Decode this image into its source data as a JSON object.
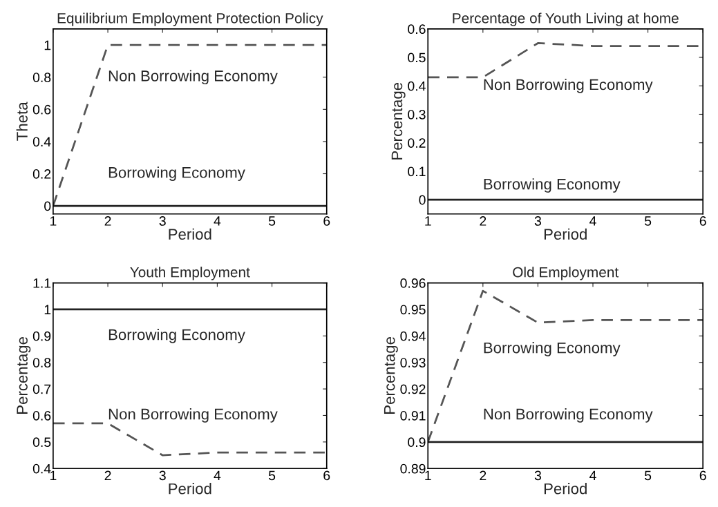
{
  "chart_data": [
    {
      "type": "line",
      "title": "Equilibrium Employment Protection Policy",
      "xlabel": "Period",
      "ylabel": "Theta",
      "x": [
        1,
        2,
        3,
        4,
        5,
        6
      ],
      "xlim": [
        1,
        6
      ],
      "xticks": [
        1,
        2,
        3,
        4,
        5,
        6
      ],
      "ylim": [
        -0.05,
        1.1
      ],
      "yticks": [
        0,
        0.2,
        0.4,
        0.6,
        0.8,
        1
      ],
      "grid": false,
      "legend": false,
      "series": [
        {
          "name": "Non Borrowing Economy",
          "color": "#555555",
          "line_style": "dashed",
          "values": [
            0,
            1,
            1,
            1,
            1,
            1
          ]
        },
        {
          "name": "Borrowing Economy",
          "color": "#222222",
          "line_style": "solid",
          "values": [
            0,
            0,
            0,
            0,
            0,
            0
          ]
        }
      ]
    },
    {
      "type": "line",
      "title": "Percentage of Youth Living at home",
      "xlabel": "Period",
      "ylabel": "Percentage",
      "x": [
        1,
        2,
        3,
        4,
        5,
        6
      ],
      "xlim": [
        1,
        6
      ],
      "xticks": [
        1,
        2,
        3,
        4,
        5,
        6
      ],
      "ylim": [
        -0.05,
        0.6
      ],
      "yticks": [
        0,
        0.1,
        0.2,
        0.3,
        0.4,
        0.5,
        0.6
      ],
      "grid": false,
      "legend": false,
      "series": [
        {
          "name": "Non Borrowing Economy",
          "color": "#555555",
          "line_style": "dashed",
          "values": [
            0.43,
            0.43,
            0.55,
            0.54,
            0.54,
            0.54
          ]
        },
        {
          "name": "Borrowing Economy",
          "color": "#222222",
          "line_style": "solid",
          "values": [
            0,
            0,
            0,
            0,
            0,
            0
          ]
        }
      ]
    },
    {
      "type": "line",
      "title": "Youth Employment",
      "xlabel": "Period",
      "ylabel": "Percentage",
      "x": [
        1,
        2,
        3,
        4,
        5,
        6
      ],
      "xlim": [
        1,
        6
      ],
      "xticks": [
        1,
        2,
        3,
        4,
        5,
        6
      ],
      "ylim": [
        0.4,
        1.1
      ],
      "yticks": [
        0.4,
        0.5,
        0.6,
        0.7,
        0.8,
        0.9,
        1,
        1.1
      ],
      "grid": false,
      "legend": false,
      "series": [
        {
          "name": "Non Borrowing Economy",
          "color": "#555555",
          "line_style": "dashed",
          "values": [
            0.57,
            0.57,
            0.45,
            0.46,
            0.46,
            0.46
          ]
        },
        {
          "name": "Borrowing Economy",
          "color": "#222222",
          "line_style": "solid",
          "values": [
            1,
            1,
            1,
            1,
            1,
            1
          ]
        }
      ]
    },
    {
      "type": "line",
      "title": "Old Employment",
      "xlabel": "Period",
      "ylabel": "Percentage",
      "x": [
        1,
        2,
        3,
        4,
        5,
        6
      ],
      "xlim": [
        1,
        6
      ],
      "xticks": [
        1,
        2,
        3,
        4,
        5,
        6
      ],
      "ylim": [
        0.89,
        0.96
      ],
      "yticks": [
        0.89,
        0.9,
        0.91,
        0.92,
        0.93,
        0.94,
        0.95,
        0.96
      ],
      "grid": false,
      "legend": false,
      "series": [
        {
          "name": "Borrowing Economy",
          "color": "#555555",
          "line_style": "dashed",
          "values": [
            0.9,
            0.957,
            0.945,
            0.946,
            0.946,
            0.946
          ]
        },
        {
          "name": "Non Borrowing Economy",
          "color": "#222222",
          "line_style": "solid",
          "values": [
            0.9,
            0.9,
            0.9,
            0.9,
            0.9,
            0.9
          ]
        }
      ]
    }
  ]
}
